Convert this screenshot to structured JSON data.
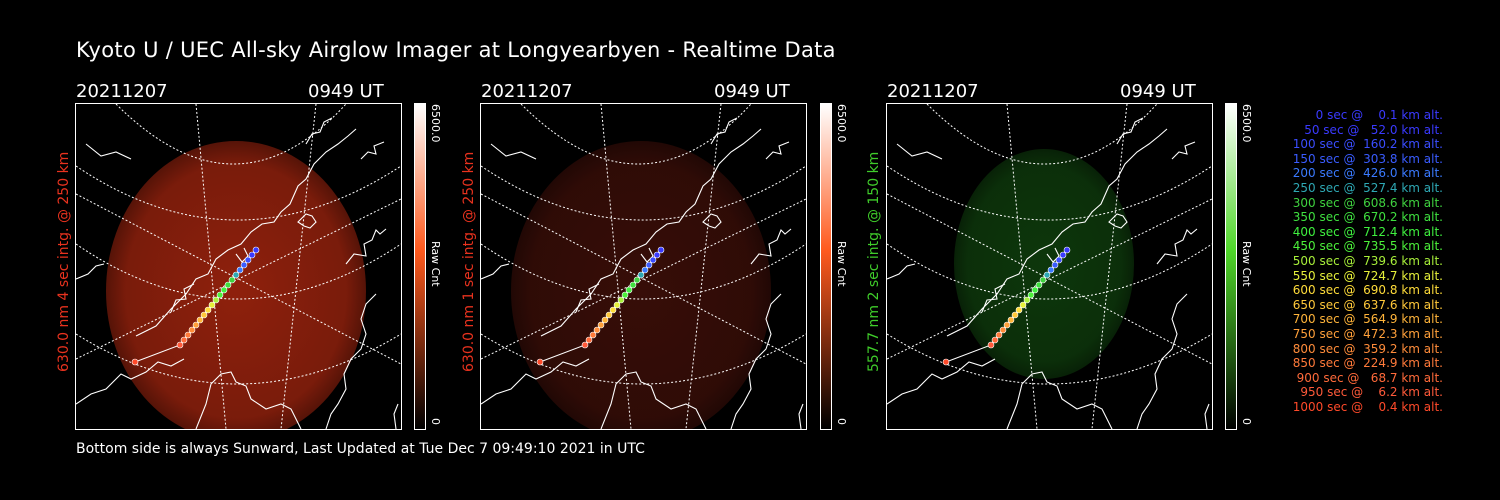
{
  "title": "Kyoto U / UEC All-sky Airglow Imager at Longyearbyen - Realtime Data",
  "footer": "Bottom side is always Sunward, Last Updated at Tue Dec  7 09:49:10 2021 in UTC",
  "panels": [
    {
      "date": "20211207",
      "time": "0949 UT",
      "ylabel": "630.0 nm 4 sec intg. @ 250 km",
      "ylabel_color": "#e8321e",
      "cbar_max": "6500.0",
      "cbar_min": "0",
      "cbar_label": "Raw Cnt",
      "cbar_color": "#ff5a1e",
      "glow_color": "#a8260f",
      "glow_opacity": 0.85
    },
    {
      "date": "20211207",
      "time": "0949 UT",
      "ylabel": "630.0 nm 1 sec intg. @ 250 km",
      "ylabel_color": "#e8321e",
      "cbar_max": "6500.0",
      "cbar_min": "0",
      "cbar_label": "Raw Cnt",
      "cbar_color": "#ff5a1e",
      "glow_color": "#3a0e08",
      "glow_opacity": 0.95
    },
    {
      "date": "20211207",
      "time": "0949 UT",
      "ylabel": "557.7 nm 2 sec intg. @ 150 km",
      "ylabel_color": "#3fcc2a",
      "cbar_max": "6500.0",
      "cbar_min": "0",
      "cbar_label": "Raw Cnt",
      "cbar_color": "#4fd62a",
      "glow_color": "#0e3a0c",
      "glow_opacity": 0.95
    }
  ],
  "trajectory_legend": [
    {
      "text": "   0 sec @    0.1 km alt.",
      "color": "#3a3aff"
    },
    {
      "text": "  50 sec @   52.0 km alt.",
      "color": "#3a3aff"
    },
    {
      "text": " 100 sec @  160.2 km alt.",
      "color": "#3a4dff"
    },
    {
      "text": " 150 sec @  303.8 km alt.",
      "color": "#3a5cff"
    },
    {
      "text": " 200 sec @  426.0 km alt.",
      "color": "#3a7aff"
    },
    {
      "text": " 250 sec @  527.4 km alt.",
      "color": "#2ea8b4"
    },
    {
      "text": " 300 sec @  608.6 km alt.",
      "color": "#3fd23f"
    },
    {
      "text": " 350 sec @  670.2 km alt.",
      "color": "#3fe03f"
    },
    {
      "text": " 400 sec @  712.4 km alt.",
      "color": "#3ff03f"
    },
    {
      "text": " 450 sec @  735.5 km alt.",
      "color": "#4cf03a"
    },
    {
      "text": " 500 sec @  739.6 km alt.",
      "color": "#a8f03a"
    },
    {
      "text": " 550 sec @  724.7 km alt.",
      "color": "#e6f03a"
    },
    {
      "text": " 600 sec @  690.8 km alt.",
      "color": "#ffdc3a"
    },
    {
      "text": " 650 sec @  637.6 km alt.",
      "color": "#ffc83a"
    },
    {
      "text": " 700 sec @  564.9 km alt.",
      "color": "#ffb43a"
    },
    {
      "text": " 750 sec @  472.3 km alt.",
      "color": "#ffa03a"
    },
    {
      "text": " 800 sec @  359.2 km alt.",
      "color": "#ff8c3a"
    },
    {
      "text": " 850 sec @  224.9 km alt.",
      "color": "#ff7a3a"
    },
    {
      "text": " 900 sec @   68.7 km alt.",
      "color": "#ff6a3a"
    },
    {
      "text": " 950 sec @    6.2 km alt.",
      "color": "#ff5a3a"
    },
    {
      "text": "1000 sec @    0.4 km alt.",
      "color": "#ff4a2a"
    }
  ]
}
